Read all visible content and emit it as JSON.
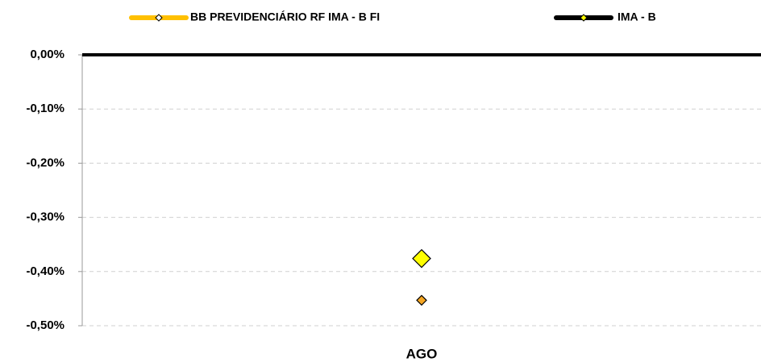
{
  "chart_data": {
    "type": "line",
    "categories": [
      "AGO"
    ],
    "series": [
      {
        "name": "BB PREVIDENCIÁRIO RF IMA - B FI",
        "color": "#ffc000",
        "marker_color": "#f5a623",
        "values": [
          -0.453
        ]
      },
      {
        "name": "IMA - B",
        "color": "#000000",
        "marker_color": "#ffff00",
        "values": [
          -0.376
        ]
      }
    ],
    "ylim": [
      -0.5,
      0
    ],
    "yticks": [
      {
        "value": -0.5,
        "label": "-0,50%"
      },
      {
        "value": -0.4,
        "label": "-0,40%"
      },
      {
        "value": -0.3,
        "label": "-0,30%"
      },
      {
        "value": -0.2,
        "label": "-0,20%"
      },
      {
        "value": -0.1,
        "label": "-0,10%"
      },
      {
        "value": 0,
        "label": "0,00%"
      }
    ],
    "grid": true
  }
}
